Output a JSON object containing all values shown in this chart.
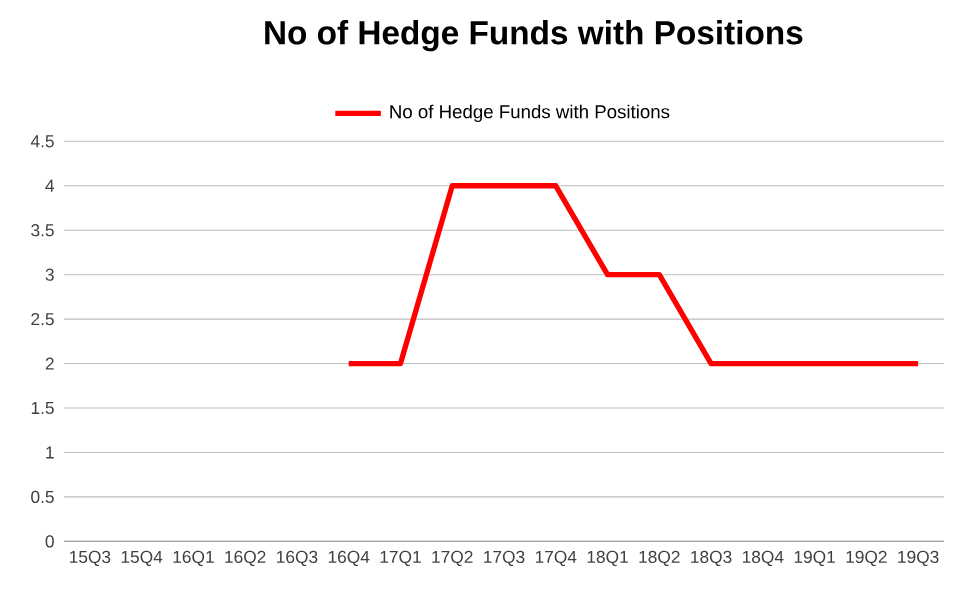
{
  "chart_data": {
    "type": "line",
    "title": "No of Hedge Funds with Positions",
    "categories": [
      "15Q3",
      "15Q4",
      "16Q1",
      "16Q2",
      "16Q3",
      "16Q4",
      "17Q1",
      "17Q2",
      "17Q3",
      "17Q4",
      "18Q1",
      "18Q2",
      "18Q3",
      "18Q4",
      "19Q1",
      "19Q2",
      "19Q3"
    ],
    "series": [
      {
        "name": "No of Hedge Funds with Positions",
        "color": "#ff0000",
        "values": [
          null,
          null,
          null,
          null,
          null,
          2,
          2,
          4,
          4,
          4,
          3,
          3,
          2,
          2,
          2,
          2,
          2
        ]
      }
    ],
    "ylim": [
      0,
      4.5
    ],
    "yticks": [
      0,
      0.5,
      1,
      1.5,
      2,
      2.5,
      3,
      3.5,
      4,
      4.5
    ],
    "grid": "y",
    "legend": "top",
    "marker": "none",
    "line_style": "solid"
  }
}
